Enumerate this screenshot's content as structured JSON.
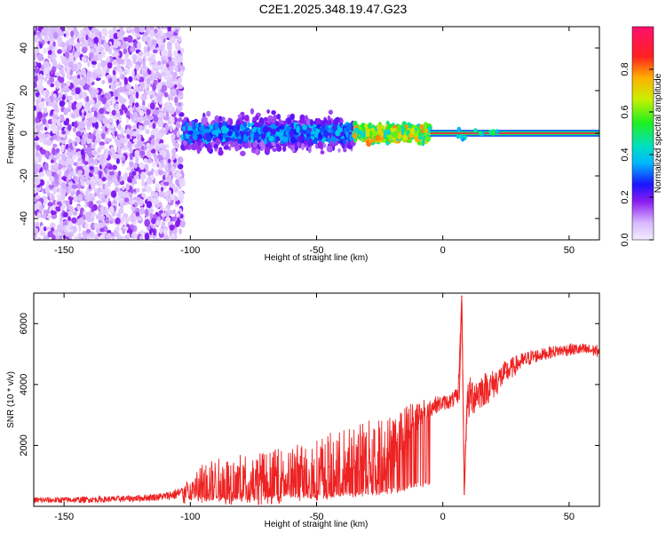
{
  "title": "C2E1.2025.348.19.47.G23",
  "chart_data": [
    {
      "type": "heatmap",
      "title": "C2E1.2025.348.19.47.G23",
      "xlabel": "Height of straight line (km)",
      "ylabel": "Frequency (Hz)",
      "xlim": [
        -162,
        62
      ],
      "ylim": [
        -50,
        50
      ],
      "xticks": [
        -150,
        -100,
        -50,
        0,
        50
      ],
      "yticks": [
        -40,
        -20,
        0,
        20,
        40
      ],
      "colorbar": {
        "label": "Normalized spectral amplitude",
        "range": [
          0.0,
          1.0
        ],
        "ticks": [
          0.0,
          0.2,
          0.4,
          0.6,
          0.8
        ]
      },
      "regions": [
        {
          "x_range": [
            -162,
            -103
          ],
          "freq_spread": 50,
          "amplitude": [
            0.05,
            0.2
          ],
          "note": "diffuse noise"
        },
        {
          "x_range": [
            -103,
            -35
          ],
          "freq_spread": 8,
          "amplitude": [
            0.2,
            0.4
          ]
        },
        {
          "x_range": [
            -35,
            -5
          ],
          "freq_spread": 4,
          "amplitude": [
            0.4,
            0.8
          ]
        },
        {
          "x_range": [
            -5,
            62
          ],
          "freq_spread": 1,
          "amplitude": [
            0.9,
            1.0
          ],
          "center_freq": 0
        }
      ]
    },
    {
      "type": "line",
      "xlabel": "Height of straight line (km)",
      "ylabel": "SNR (10 * v/v)",
      "xlim": [
        -162,
        62
      ],
      "ylim": [
        0,
        7000
      ],
      "xticks": [
        -150,
        -100,
        -50,
        0,
        50
      ],
      "yticks": [
        2000,
        4000,
        6000
      ],
      "color": "#ee2222",
      "series": [
        {
          "name": "SNR",
          "x": [
            -162,
            -150,
            -140,
            -130,
            -120,
            -110,
            -103,
            -95,
            -85,
            -75,
            -65,
            -55,
            -45,
            -35,
            -25,
            -18,
            -12,
            -8,
            -4,
            0,
            3,
            6,
            7.5,
            8.5,
            9.5,
            11,
            15,
            20,
            25,
            30,
            35,
            40,
            45,
            50,
            55,
            62
          ],
          "y": [
            200,
            210,
            220,
            240,
            270,
            330,
            450,
            750,
            850,
            900,
            1000,
            1150,
            1300,
            1500,
            1750,
            2200,
            2900,
            3100,
            3300,
            3400,
            3450,
            3600,
            6900,
            400,
            3300,
            3600,
            3800,
            4000,
            4400,
            4700,
            4900,
            5000,
            5100,
            5150,
            5150,
            5100
          ],
          "noise": [
            100,
            100,
            100,
            100,
            110,
            130,
            220,
            700,
            800,
            850,
            900,
            1000,
            1100,
            1200,
            1200,
            900,
            600,
            400,
            300,
            250,
            250,
            300,
            0,
            0,
            700,
            700,
            600,
            500,
            400,
            300,
            250,
            200,
            200,
            200,
            200,
            200
          ]
        }
      ]
    }
  ]
}
